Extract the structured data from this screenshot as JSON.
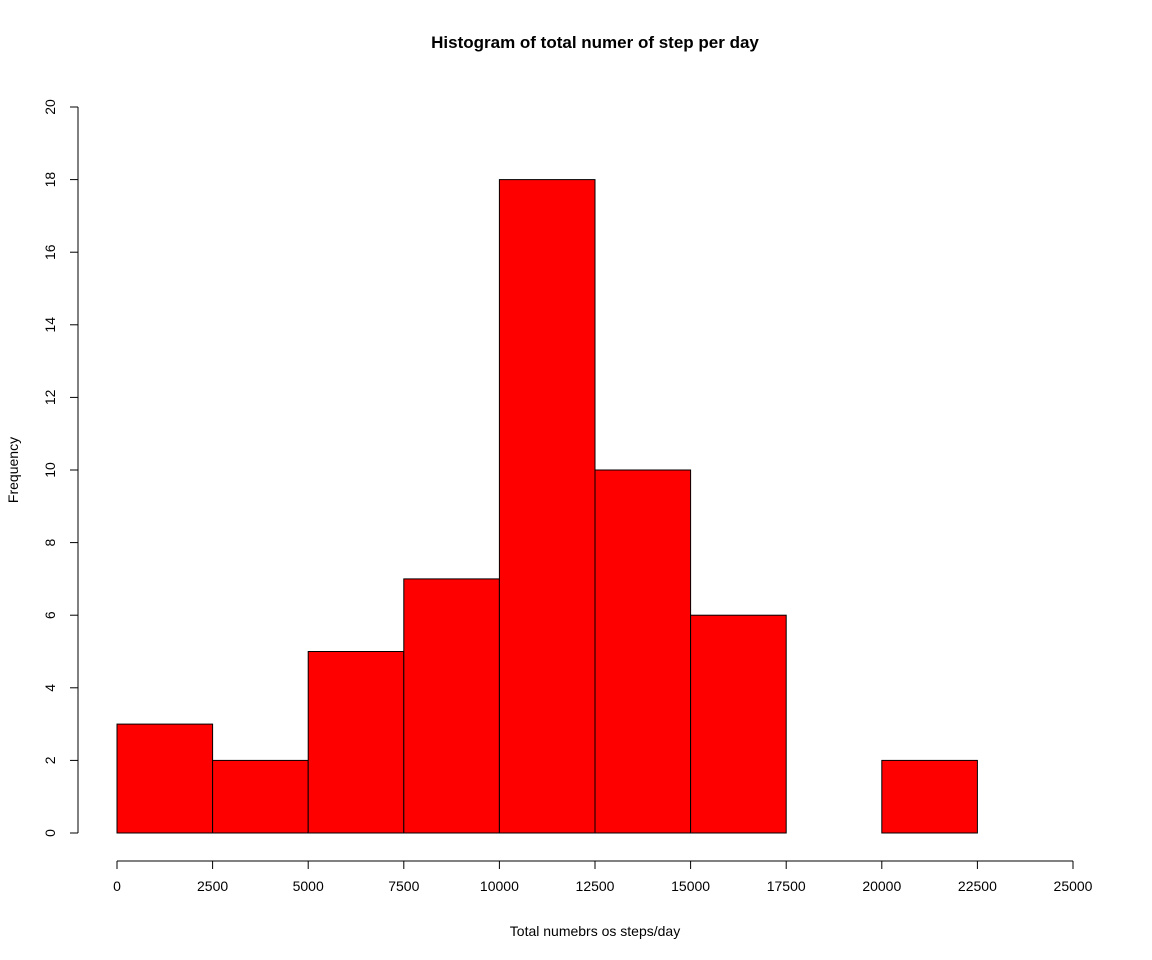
{
  "chart_data": {
    "type": "bar",
    "title": "Histogram of total numer of step per day",
    "xlabel": "Total numebrs os steps/day",
    "ylabel": "Frequency",
    "bin_edges": [
      0,
      2500,
      5000,
      7500,
      10000,
      12500,
      15000,
      17500,
      20000,
      22500,
      25000
    ],
    "values": [
      3,
      2,
      5,
      7,
      18,
      10,
      6,
      0,
      2,
      0
    ],
    "xlim": [
      0,
      25000
    ],
    "ylim": [
      0,
      20
    ],
    "x_ticks": [
      0,
      2500,
      5000,
      7500,
      10000,
      12500,
      15000,
      17500,
      20000,
      22500,
      25000
    ],
    "y_ticks": [
      0,
      2,
      4,
      6,
      8,
      10,
      12,
      14,
      16,
      18,
      20
    ],
    "bar_color": "#FF0000",
    "grid": false
  }
}
